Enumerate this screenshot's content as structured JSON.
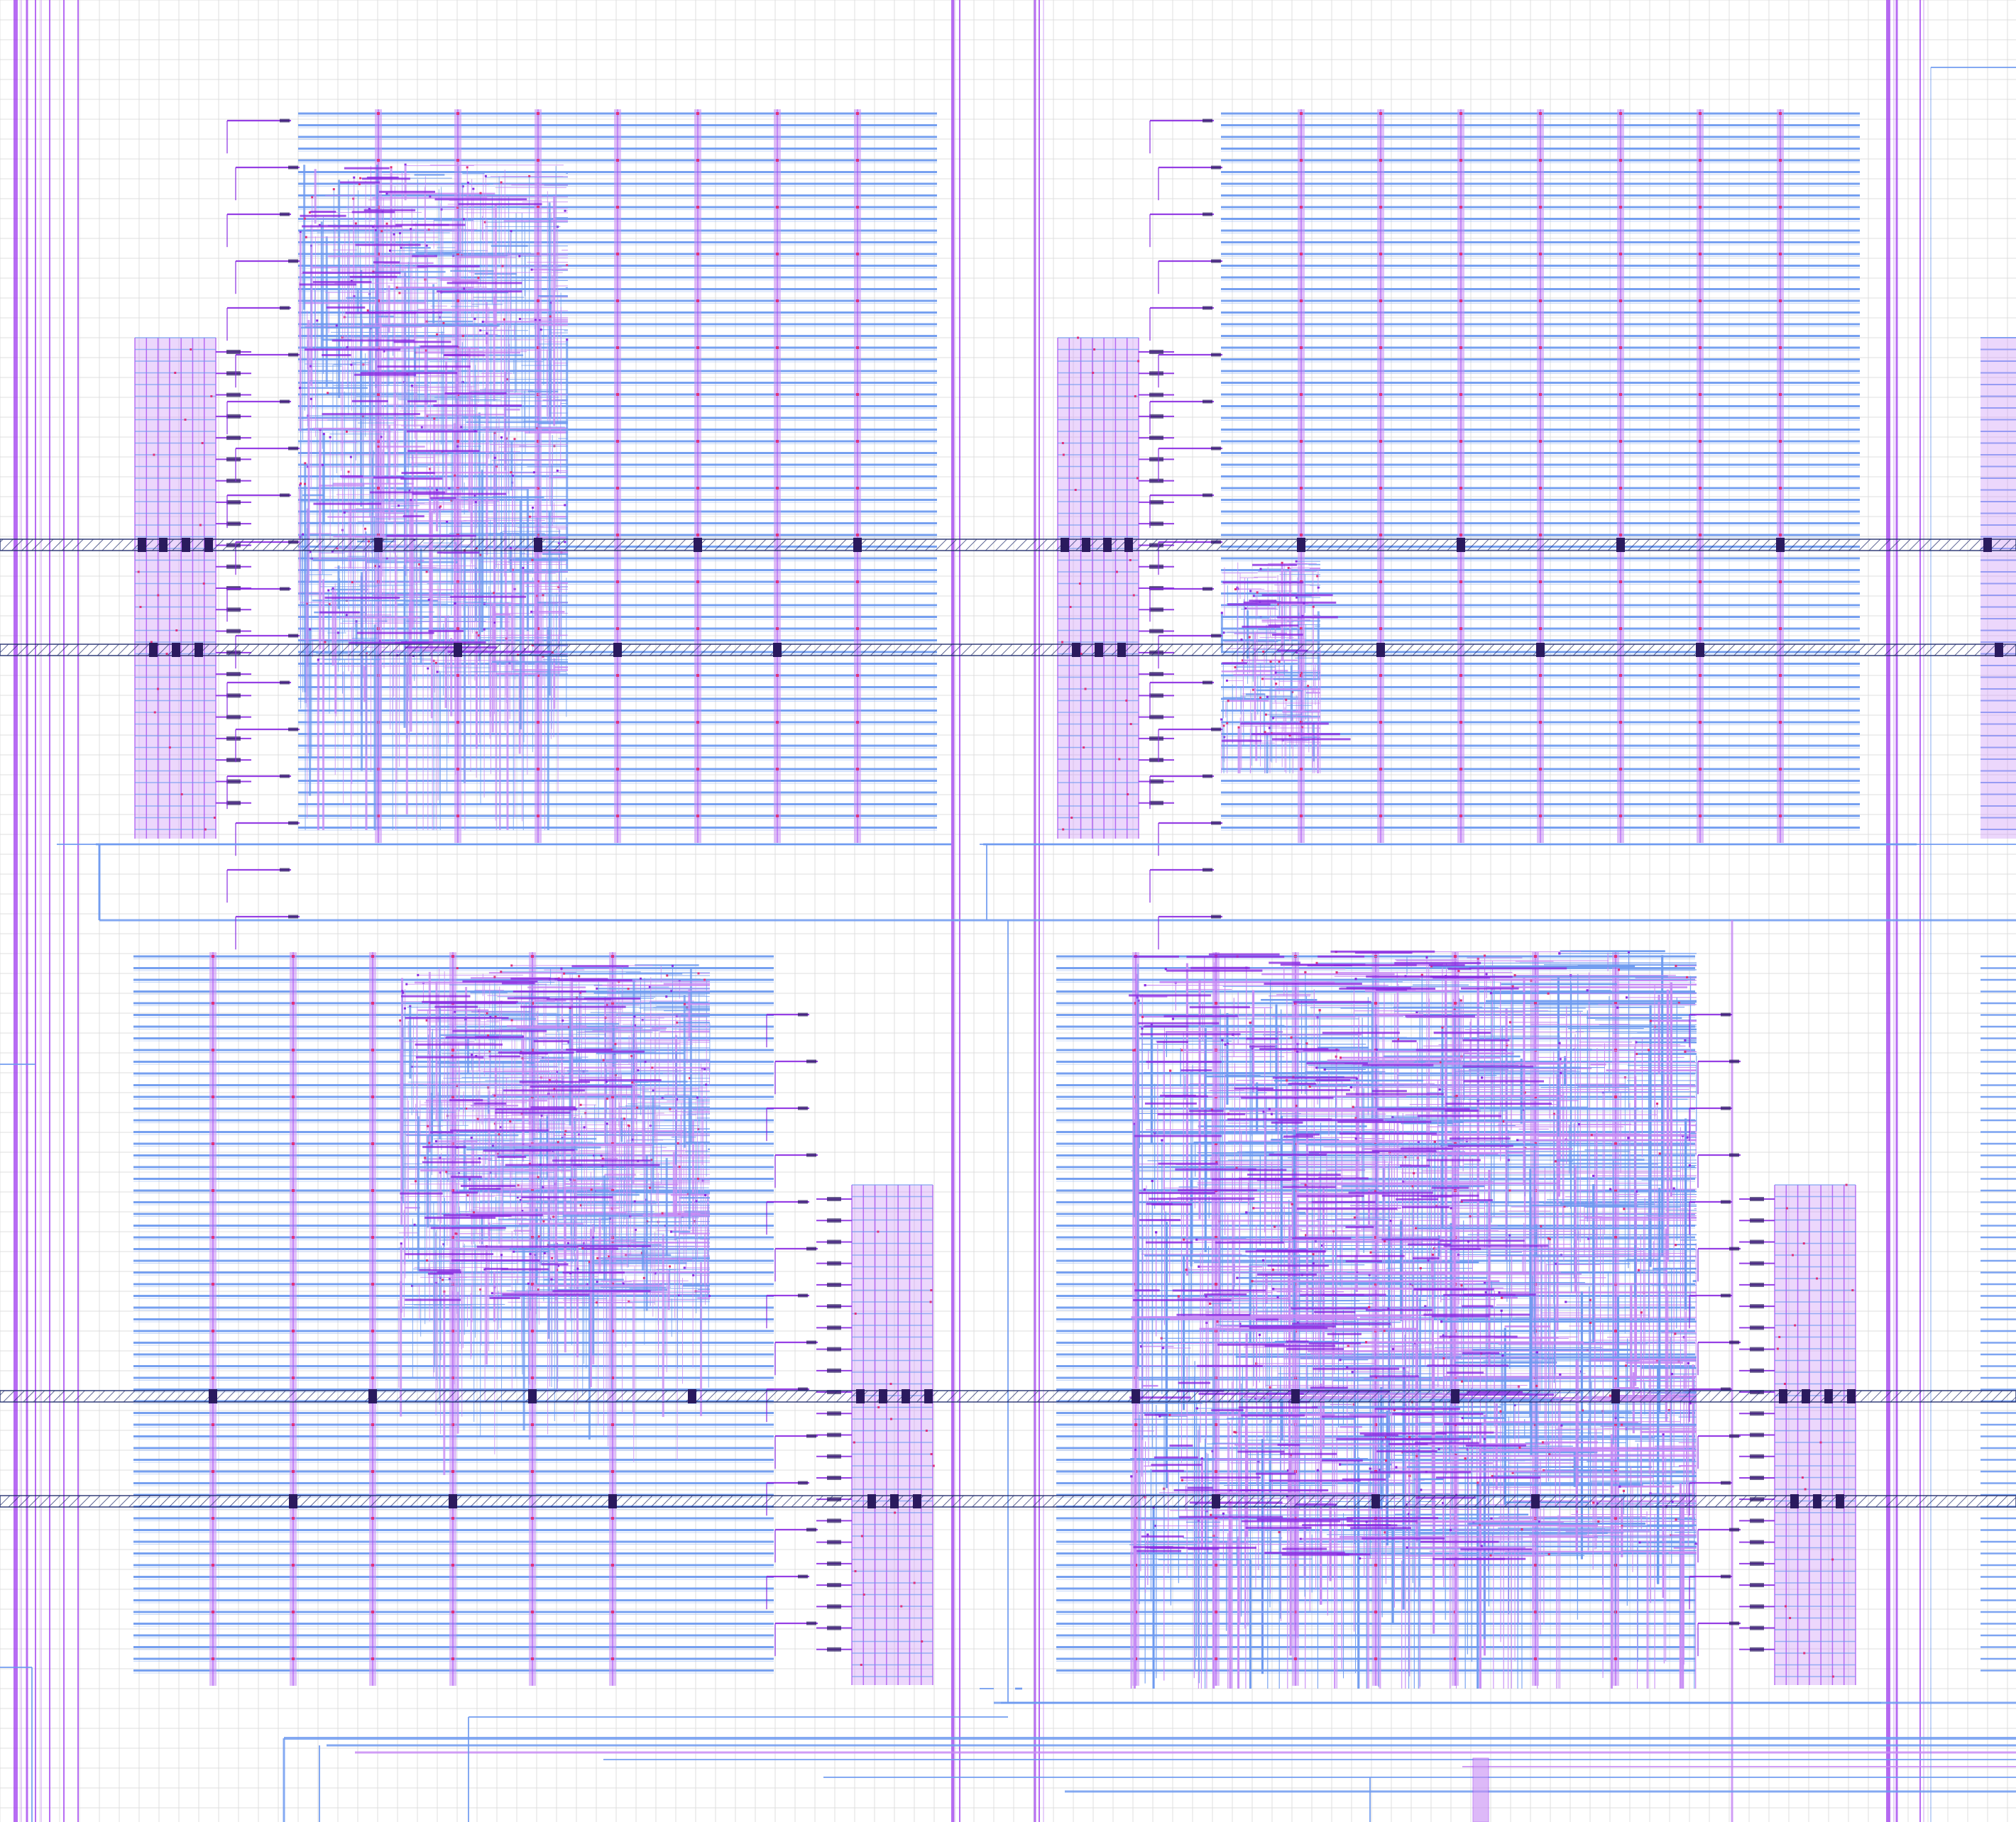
{
  "viewer": {
    "view": "chip-layout-routing",
    "visible_text": []
  },
  "colors": {
    "background": "#ffffff",
    "grid": "#dcdcdc",
    "metal_horizontal": "#6f9bf0",
    "metal_horizontal_light": "#9dbdf6",
    "metal_vertical": "#c88cf5",
    "metal_vertical_dark": "#a03cf0",
    "via": "#e0307a",
    "power_strap": "#1e2a6b",
    "power_strap_fill": "#ffffff",
    "power_pad": "#2a1a5e",
    "signal_violet": "#8a2be2"
  },
  "layers": [
    {
      "name": "grid",
      "icon": "grid-icon"
    },
    {
      "name": "horizontal-metal",
      "icon": "hline-icon"
    },
    {
      "name": "vertical-metal",
      "icon": "vline-icon"
    },
    {
      "name": "vias",
      "icon": "via-icon"
    },
    {
      "name": "power-straps",
      "icon": "hatch-icon"
    }
  ],
  "blocks": [
    {
      "id": "block-top-left",
      "label": ""
    },
    {
      "id": "block-top-right",
      "label": ""
    },
    {
      "id": "block-bottom-left",
      "label": ""
    },
    {
      "id": "block-bottom-right",
      "label": ""
    }
  ]
}
